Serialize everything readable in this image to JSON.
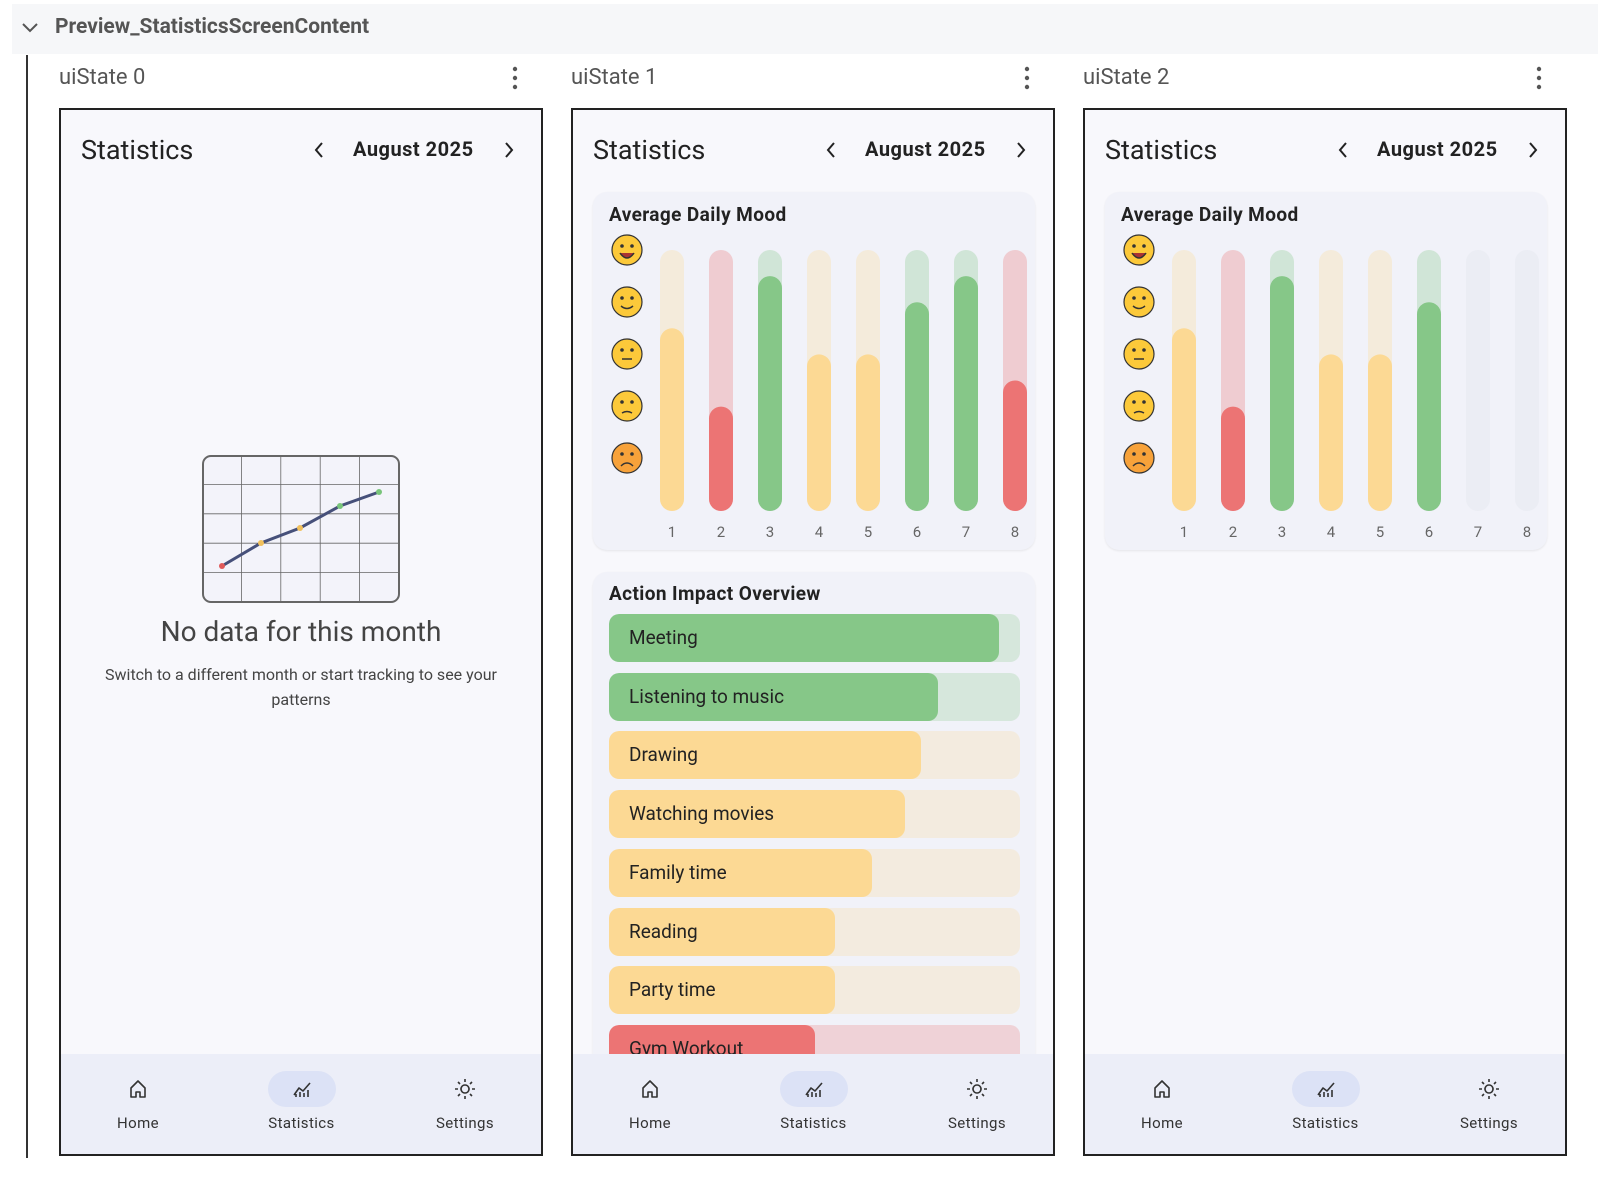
{
  "header": {
    "title": "Preview_StatisticsScreenContent"
  },
  "previews": [
    {
      "label": "uiState 0",
      "screen": {
        "title": "Statistics",
        "month": "August 2025",
        "empty_state": {
          "title": "No data for this month",
          "message": "Switch to a different month or start tracking to see your patterns"
        },
        "nav": [
          "Home",
          "Statistics",
          "Settings"
        ]
      }
    },
    {
      "label": "uiState 1",
      "screen": {
        "title": "Statistics",
        "month": "August 2025",
        "mood": {
          "title": "Average Daily Mood",
          "days": [
            1,
            2,
            3,
            4,
            5,
            6,
            7,
            8
          ],
          "values": [
            3.5,
            2,
            4.5,
            3,
            3,
            4,
            4.5,
            2.5
          ],
          "colors": [
            "#fcd994",
            "#ec7474",
            "#86c788",
            "#fcd994",
            "#fcd994",
            "#86c788",
            "#86c788",
            "#ec7474"
          ],
          "ylim": [
            0,
            5
          ]
        },
        "impact": {
          "title": "Action Impact Overview",
          "xlim": [
            0,
            1
          ],
          "items": [
            {
              "name": "Meeting",
              "value": 0.95,
              "color": "#86c788"
            },
            {
              "name": "Listening to music",
              "value": 0.8,
              "color": "#86c788"
            },
            {
              "name": "Drawing",
              "value": 0.76,
              "color": "#fcd994"
            },
            {
              "name": "Watching movies",
              "value": 0.72,
              "color": "#fcd994"
            },
            {
              "name": "Family time",
              "value": 0.64,
              "color": "#fcd994"
            },
            {
              "name": "Reading",
              "value": 0.55,
              "color": "#fcd994"
            },
            {
              "name": "Party time",
              "value": 0.55,
              "color": "#fcd994"
            },
            {
              "name": "Gym Workout",
              "value": 0.5,
              "color": "#ec7474"
            }
          ]
        },
        "nav": [
          "Home",
          "Statistics",
          "Settings"
        ]
      }
    },
    {
      "label": "uiState 2",
      "screen": {
        "title": "Statistics",
        "month": "August 2025",
        "mood": {
          "title": "Average Daily Mood",
          "days": [
            1,
            2,
            3,
            4,
            5,
            6,
            7,
            8
          ],
          "values": [
            3.5,
            2,
            4.5,
            3,
            3,
            4,
            null,
            null
          ],
          "colors": [
            "#fcd994",
            "#ec7474",
            "#86c788",
            "#fcd994",
            "#fcd994",
            "#86c788",
            null,
            null
          ],
          "ylim": [
            0,
            5
          ]
        },
        "nav": [
          "Home",
          "Statistics",
          "Settings"
        ]
      }
    }
  ]
}
